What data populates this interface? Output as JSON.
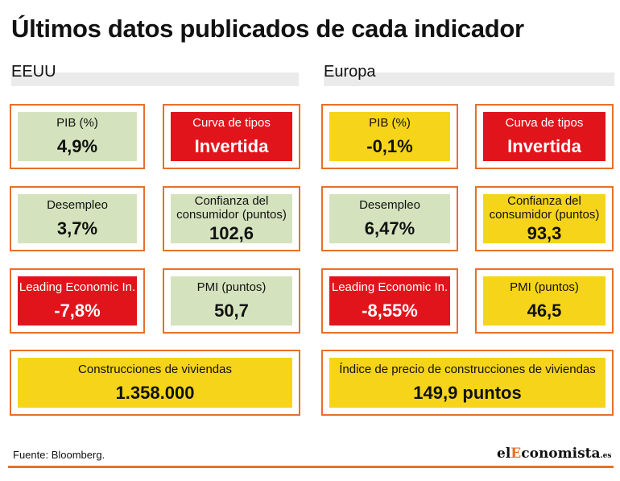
{
  "title": "Últimos datos publicados de cada indicador",
  "regions": [
    {
      "name": "EEUU",
      "cards": [
        {
          "label": "PIB (%)",
          "value": "4,9%",
          "status": "green"
        },
        {
          "label": "Curva de tipos",
          "value": "Invertida",
          "status": "red"
        },
        {
          "label": "Desempleo",
          "value": "3,7%",
          "status": "green"
        },
        {
          "label": "Confianza del consumidor (puntos)",
          "value": "102,6",
          "status": "green"
        },
        {
          "label": "Leading Economic In.",
          "value": "-7,8%",
          "status": "red"
        },
        {
          "label": "PMI (puntos)",
          "value": "50,7",
          "status": "green"
        },
        {
          "label": "Construcciones de viviendas",
          "value": "1.358.000",
          "status": "yellow"
        }
      ]
    },
    {
      "name": "Europa",
      "cards": [
        {
          "label": "PIB (%)",
          "value": "-0,1%",
          "status": "yellow"
        },
        {
          "label": "Curva de tipos",
          "value": "Invertida",
          "status": "red"
        },
        {
          "label": "Desempleo",
          "value": "6,47%",
          "status": "green"
        },
        {
          "label": "Confianza del consumidor (puntos)",
          "value": "93,3",
          "status": "yellow"
        },
        {
          "label": "Leading Economic In.",
          "value": "-8,55%",
          "status": "red"
        },
        {
          "label": "PMI (puntos)",
          "value": "46,5",
          "status": "yellow"
        },
        {
          "label": "Índice de precio de construcciones de viviendas",
          "value": "149,9 puntos",
          "status": "yellow"
        }
      ]
    }
  ],
  "source": "Fuente: Bloomberg.",
  "logo": {
    "part1": "el",
    "part2": "E",
    "part3": "conomista",
    "part4": ".es"
  },
  "colors": {
    "green": "#d4e3bd",
    "red": "#e2141b",
    "yellow": "#f6d419",
    "border": "#e8702a"
  },
  "chart_data": {
    "type": "table",
    "title": "Últimos datos publicados de cada indicador",
    "columns": [
      "EEUU",
      "Europa"
    ],
    "rows": [
      {
        "indicator": "PIB (%)",
        "EEUU": "4,9%",
        "Europa": "-0,1%"
      },
      {
        "indicator": "Curva de tipos",
        "EEUU": "Invertida",
        "Europa": "Invertida"
      },
      {
        "indicator": "Desempleo",
        "EEUU": "3,7%",
        "Europa": "6,47%"
      },
      {
        "indicator": "Confianza del consumidor (puntos)",
        "EEUU": "102,6",
        "Europa": "93,3"
      },
      {
        "indicator": "Leading Economic In.",
        "EEUU": "-7,8%",
        "Europa": "-8,55%"
      },
      {
        "indicator": "PMI (puntos)",
        "EEUU": "50,7",
        "Europa": "46,5"
      },
      {
        "indicator": "Construcciones de viviendas / Índice de precio de construcciones de viviendas",
        "EEUU": "1.358.000",
        "Europa": "149,9 puntos"
      }
    ]
  }
}
